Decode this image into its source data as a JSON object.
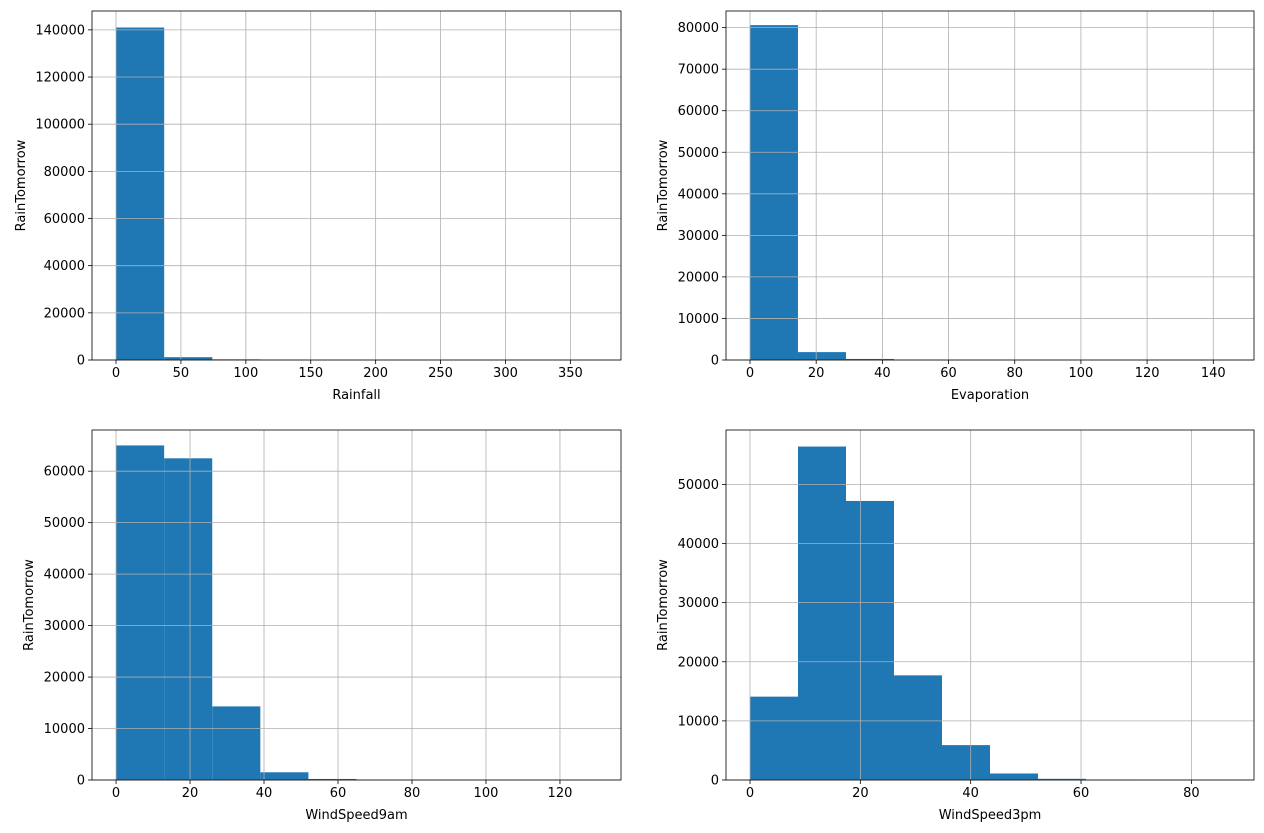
{
  "chart_data": [
    {
      "type": "bar",
      "title": "",
      "xlabel": "Rainfall",
      "ylabel": "RainTomorrow",
      "xlim": [
        -18.5,
        389
      ],
      "ylim": [
        0,
        148000
      ],
      "grid": true,
      "color": "#1f77b4",
      "x_ticks": [
        0,
        50,
        100,
        150,
        200,
        250,
        300,
        350
      ],
      "y_ticks": [
        0,
        20000,
        40000,
        60000,
        80000,
        100000,
        120000,
        140000
      ],
      "bins": [
        {
          "start": 0,
          "end": 37.1,
          "value": 141000
        },
        {
          "start": 37.1,
          "end": 74.2,
          "value": 1200
        },
        {
          "start": 74.2,
          "end": 111.3,
          "value": 280
        },
        {
          "start": 111.3,
          "end": 148.4,
          "value": 70
        },
        {
          "start": 148.4,
          "end": 185.5,
          "value": 25
        },
        {
          "start": 185.5,
          "end": 222.6,
          "value": 10
        },
        {
          "start": 222.6,
          "end": 259.7,
          "value": 5
        },
        {
          "start": 259.7,
          "end": 296.8,
          "value": 3
        },
        {
          "start": 296.8,
          "end": 333.9,
          "value": 2
        },
        {
          "start": 333.9,
          "end": 371.0,
          "value": 1
        }
      ]
    },
    {
      "type": "bar",
      "title": "",
      "xlabel": "Evaporation",
      "ylabel": "RainTomorrow",
      "xlim": [
        -7.25,
        152.3
      ],
      "ylim": [
        0,
        84000
      ],
      "grid": true,
      "color": "#1f77b4",
      "x_ticks": [
        0,
        20,
        40,
        60,
        80,
        100,
        120,
        140
      ],
      "y_ticks": [
        0,
        10000,
        20000,
        30000,
        40000,
        50000,
        60000,
        70000,
        80000
      ],
      "bins": [
        {
          "start": 0,
          "end": 14.5,
          "value": 80600
        },
        {
          "start": 14.5,
          "end": 29.0,
          "value": 1900
        },
        {
          "start": 29.0,
          "end": 43.5,
          "value": 250
        },
        {
          "start": 43.5,
          "end": 58.0,
          "value": 40
        },
        {
          "start": 58.0,
          "end": 72.5,
          "value": 15
        },
        {
          "start": 72.5,
          "end": 87.0,
          "value": 8
        },
        {
          "start": 87.0,
          "end": 101.5,
          "value": 4
        },
        {
          "start": 101.5,
          "end": 116.0,
          "value": 2
        },
        {
          "start": 116.0,
          "end": 130.5,
          "value": 1
        },
        {
          "start": 130.5,
          "end": 145.0,
          "value": 1
        }
      ]
    },
    {
      "type": "bar",
      "title": "",
      "xlabel": "WindSpeed9am",
      "ylabel": "RainTomorrow",
      "xlim": [
        -6.5,
        136.5
      ],
      "ylim": [
        0,
        68000
      ],
      "grid": true,
      "color": "#1f77b4",
      "x_ticks": [
        0,
        20,
        40,
        60,
        80,
        100,
        120
      ],
      "y_ticks": [
        0,
        10000,
        20000,
        30000,
        40000,
        50000,
        60000
      ],
      "bins": [
        {
          "start": 0,
          "end": 13,
          "value": 65000
        },
        {
          "start": 13,
          "end": 26,
          "value": 62500
        },
        {
          "start": 26,
          "end": 39,
          "value": 14300
        },
        {
          "start": 39,
          "end": 52,
          "value": 1500
        },
        {
          "start": 52,
          "end": 65,
          "value": 200
        },
        {
          "start": 65,
          "end": 78,
          "value": 40
        },
        {
          "start": 78,
          "end": 91,
          "value": 10
        },
        {
          "start": 91,
          "end": 104,
          "value": 4
        },
        {
          "start": 104,
          "end": 117,
          "value": 2
        },
        {
          "start": 117,
          "end": 130,
          "value": 1
        }
      ]
    },
    {
      "type": "bar",
      "title": "",
      "xlabel": "WindSpeed3pm",
      "ylabel": "RainTomorrow",
      "xlim": [
        -4.35,
        91.35
      ],
      "ylim": [
        0,
        59200
      ],
      "grid": true,
      "color": "#1f77b4",
      "x_ticks": [
        0,
        20,
        40,
        60,
        80
      ],
      "y_ticks": [
        0,
        10000,
        20000,
        30000,
        40000,
        50000
      ],
      "bins": [
        {
          "start": 0,
          "end": 8.7,
          "value": 14100
        },
        {
          "start": 8.7,
          "end": 17.4,
          "value": 56400
        },
        {
          "start": 17.4,
          "end": 26.1,
          "value": 47200
        },
        {
          "start": 26.1,
          "end": 34.8,
          "value": 17700
        },
        {
          "start": 34.8,
          "end": 43.5,
          "value": 5900
        },
        {
          "start": 43.5,
          "end": 52.2,
          "value": 1100
        },
        {
          "start": 52.2,
          "end": 60.9,
          "value": 200
        },
        {
          "start": 60.9,
          "end": 69.6,
          "value": 60
        },
        {
          "start": 69.6,
          "end": 78.3,
          "value": 10
        },
        {
          "start": 78.3,
          "end": 87.0,
          "value": 3
        }
      ]
    }
  ]
}
